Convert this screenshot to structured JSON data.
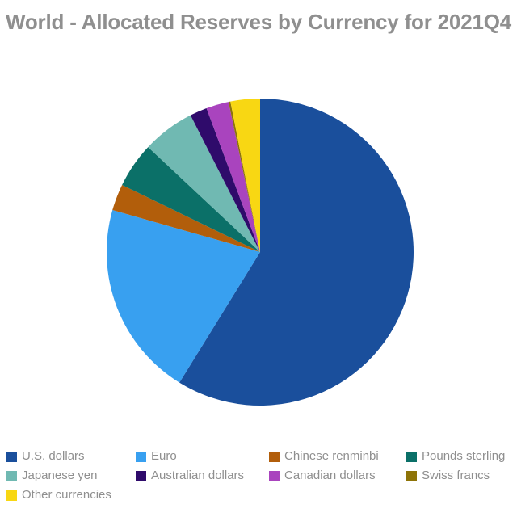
{
  "title": "World - Allocated Reserves by Currency for 2021Q4",
  "chart_data": {
    "type": "pie",
    "title": "World - Allocated Reserves by Currency for 2021Q4",
    "labels": [
      "U.S. dollars",
      "Euro",
      "Chinese renminbi",
      "Pounds sterling",
      "Japanese yen",
      "Australian dollars",
      "Canadian dollars",
      "Swiss francs",
      "Other currencies"
    ],
    "values": [
      58.81,
      20.59,
      2.79,
      4.78,
      5.53,
      1.81,
      2.38,
      0.2,
      3.1
    ],
    "unit": "percent of allocated reserves",
    "colors": [
      "#1a4f9c",
      "#38a0f0",
      "#b25e0b",
      "#0b7068",
      "#70b9b2",
      "#2f0b6b",
      "#a944be",
      "#8e7408",
      "#f8d713"
    ],
    "start_angle_deg": 0,
    "direction": "clockwise",
    "grid": false,
    "legend_position": "bottom",
    "legend_columns": 4,
    "title_color": "#8f8f8f",
    "legend_text_color": "#8f8f8f",
    "background_color": "#ffffff"
  }
}
